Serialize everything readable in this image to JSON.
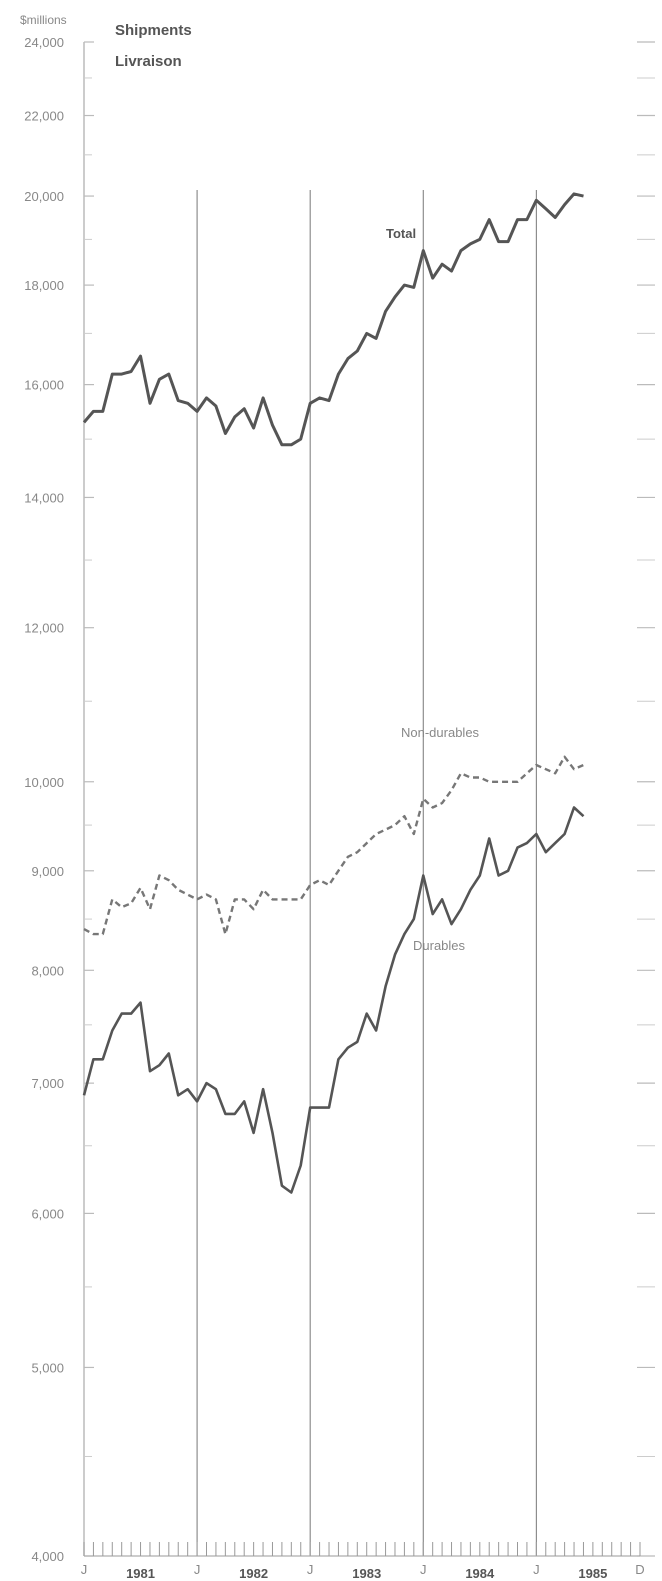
{
  "chart_data": {
    "type": "line",
    "title": "Shipments",
    "subtitle": "Livraison",
    "ylabel": "$millions",
    "y_scale": "log",
    "ylim": [
      4000,
      24000
    ],
    "yticks": [
      4000,
      5000,
      6000,
      7000,
      8000,
      9000,
      10000,
      12000,
      14000,
      16000,
      18000,
      20000,
      22000,
      24000
    ],
    "ytick_labels": [
      "4,000",
      "5,000",
      "6,000",
      "7,000",
      "8,000",
      "9,000",
      "10,000",
      "12,000",
      "14,000",
      "16,000",
      "18,000",
      "20,000",
      "22,000",
      "24,000"
    ],
    "x_start": "1981-01",
    "x_end": "1985-12",
    "month_labels": [
      {
        "month": "1981-01",
        "label": "J"
      },
      {
        "month": "1982-01",
        "label": "J"
      },
      {
        "month": "1983-01",
        "label": "J"
      },
      {
        "month": "1984-01",
        "label": "J"
      },
      {
        "month": "1985-01",
        "label": "J"
      },
      {
        "month": "1985-12",
        "label": "D"
      }
    ],
    "year_labels": [
      {
        "year": "1981",
        "month": "1981-07"
      },
      {
        "year": "1982",
        "month": "1982-07"
      },
      {
        "year": "1983",
        "month": "1983-07"
      },
      {
        "year": "1984",
        "month": "1984-07"
      },
      {
        "year": "1985",
        "month": "1985-07"
      }
    ],
    "x": [
      "1981-01",
      "1981-02",
      "1981-03",
      "1981-04",
      "1981-05",
      "1981-06",
      "1981-07",
      "1981-08",
      "1981-09",
      "1981-10",
      "1981-11",
      "1981-12",
      "1982-01",
      "1982-02",
      "1982-03",
      "1982-04",
      "1982-05",
      "1982-06",
      "1982-07",
      "1982-08",
      "1982-09",
      "1982-10",
      "1982-11",
      "1982-12",
      "1983-01",
      "1983-02",
      "1983-03",
      "1983-04",
      "1983-05",
      "1983-06",
      "1983-07",
      "1983-08",
      "1983-09",
      "1983-10",
      "1983-11",
      "1983-12",
      "1984-01",
      "1984-02",
      "1984-03",
      "1984-04",
      "1984-05",
      "1984-06",
      "1984-07",
      "1984-08",
      "1984-09",
      "1984-10",
      "1984-11",
      "1984-12",
      "1985-01",
      "1985-02",
      "1985-03",
      "1985-04",
      "1985-05",
      "1985-06"
    ],
    "series": [
      {
        "name": "Total",
        "style": "solid-bold",
        "values": [
          15300,
          15500,
          15500,
          16200,
          16200,
          16250,
          16550,
          15650,
          16100,
          16200,
          15700,
          15650,
          15500,
          15750,
          15600,
          15100,
          15400,
          15550,
          15200,
          15750,
          15250,
          14900,
          14900,
          15000,
          15650,
          15750,
          15700,
          16200,
          16500,
          16650,
          17000,
          16900,
          17450,
          17750,
          18000,
          17950,
          18750,
          18150,
          18450,
          18300,
          18750,
          18900,
          19000,
          19450,
          18950,
          18950,
          19450,
          19450,
          19900,
          19700,
          19500,
          19800,
          20050,
          20000
        ]
      },
      {
        "name": "Non-durables",
        "style": "dashed",
        "values": [
          8400,
          8350,
          8350,
          8700,
          8620,
          8660,
          8820,
          8600,
          8950,
          8900,
          8800,
          8750,
          8700,
          8750,
          8700,
          8350,
          8700,
          8700,
          8600,
          8800,
          8700,
          8700,
          8700,
          8700,
          8850,
          8900,
          8850,
          9000,
          9150,
          9200,
          9300,
          9400,
          9450,
          9500,
          9600,
          9400,
          9800,
          9700,
          9750,
          9900,
          10100,
          10050,
          10050,
          10000,
          10000,
          10000,
          10000,
          10100,
          10200,
          10150,
          10100,
          10300,
          10150,
          10200
        ]
      },
      {
        "name": "Durables",
        "style": "solid",
        "values": [
          6900,
          7200,
          7200,
          7450,
          7600,
          7600,
          7700,
          7100,
          7150,
          7250,
          6900,
          6950,
          6850,
          7000,
          6950,
          6750,
          6750,
          6850,
          6600,
          6950,
          6600,
          6200,
          6150,
          6350,
          6800,
          6800,
          6800,
          7200,
          7300,
          7350,
          7600,
          7450,
          7850,
          8150,
          8350,
          8500,
          8950,
          8550,
          8700,
          8450,
          8600,
          8800,
          8950,
          9350,
          8950,
          9000,
          9250,
          9300,
          9400,
          9200,
          9300,
          9400,
          9700,
          9600
        ]
      }
    ],
    "series_labels": {
      "total": "Total",
      "non_durables": "Non-durables",
      "durables": "Durables"
    }
  }
}
